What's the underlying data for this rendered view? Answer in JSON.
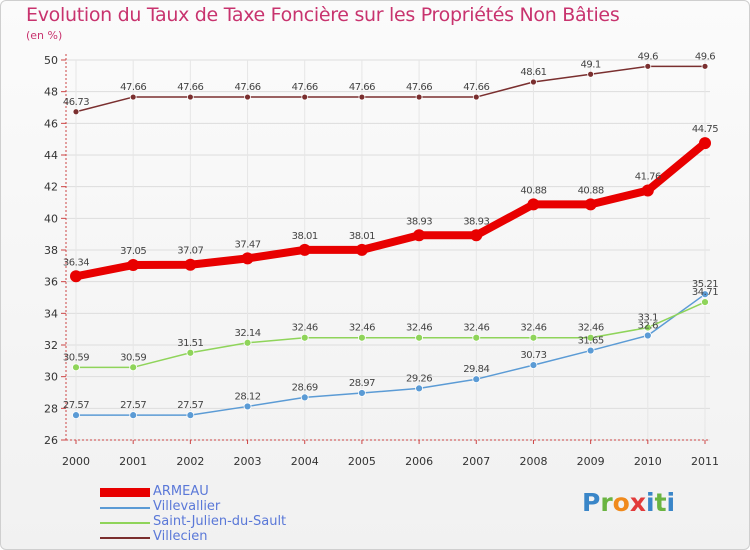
{
  "header": {
    "title": "Evolution du Taux de Taxe Foncière sur les Propriétés Non Bâties",
    "unit": "(en %)"
  },
  "logo": {
    "text": "Proxiti",
    "colors": [
      "#3a86c8",
      "#6ab441",
      "#f08a1c",
      "#e23b3b",
      "#3a86c8",
      "#6ab441",
      "#3a86c8"
    ]
  },
  "chart_data": {
    "type": "line",
    "title": "Evolution du Taux de Taxe Foncière sur les Propriétés Non Bâties",
    "ylabel": "(en %)",
    "xlabel": "",
    "x": [
      "2000",
      "2001",
      "2002",
      "2003",
      "2004",
      "2005",
      "2006",
      "2007",
      "2008",
      "2009",
      "2010",
      "2011"
    ],
    "ylim": [
      26,
      50
    ],
    "yticks": [
      26,
      28,
      30,
      32,
      34,
      36,
      38,
      40,
      42,
      44,
      46,
      48,
      50
    ],
    "grid": true,
    "legend_position": "bottom-left",
    "series": [
      {
        "name": "ARMEAU",
        "color": "#e80000",
        "values": [
          36.34,
          37.05,
          37.07,
          37.47,
          38.01,
          38.01,
          38.93,
          38.93,
          40.88,
          40.88,
          41.76,
          44.75
        ],
        "labels": [
          "36.34",
          "37.05",
          "37.07",
          "37.47",
          "38.01",
          "38.01",
          "38.93",
          "38.93",
          "40.88",
          "40.88",
          "41.76",
          "44.75"
        ]
      },
      {
        "name": "Villevallier",
        "color": "#5b9bd5",
        "values": [
          27.57,
          27.57,
          27.57,
          28.12,
          28.69,
          28.97,
          29.26,
          29.84,
          30.73,
          31.65,
          32.6,
          35.21
        ],
        "labels": [
          "27.57",
          "27.57",
          "27.57",
          "28.12",
          "28.69",
          "28.97",
          "29.26",
          "29.84",
          "30.73",
          "31.65",
          "32.6",
          "35.21"
        ]
      },
      {
        "name": "Saint-Julien-du-Sault",
        "color": "#8fd45a",
        "values": [
          30.59,
          30.59,
          31.51,
          32.14,
          32.46,
          32.46,
          32.46,
          32.46,
          32.46,
          32.46,
          33.1,
          34.71
        ],
        "labels": [
          "30.59",
          "30.59",
          "31.51",
          "32.14",
          "32.46",
          "32.46",
          "32.46",
          "32.46",
          "32.46",
          "32.46",
          "33.1",
          "34.71"
        ]
      },
      {
        "name": "Villecien",
        "color": "#7a2f2f",
        "values": [
          46.73,
          47.66,
          47.66,
          47.66,
          47.66,
          47.66,
          47.66,
          47.66,
          48.61,
          49.1,
          49.6,
          49.6
        ],
        "labels": [
          "46.73",
          "47.66",
          "47.66",
          "47.66",
          "47.66",
          "47.66",
          "47.66",
          "47.66",
          "48.61",
          "49.1",
          "49.6",
          "49.6"
        ]
      }
    ]
  }
}
